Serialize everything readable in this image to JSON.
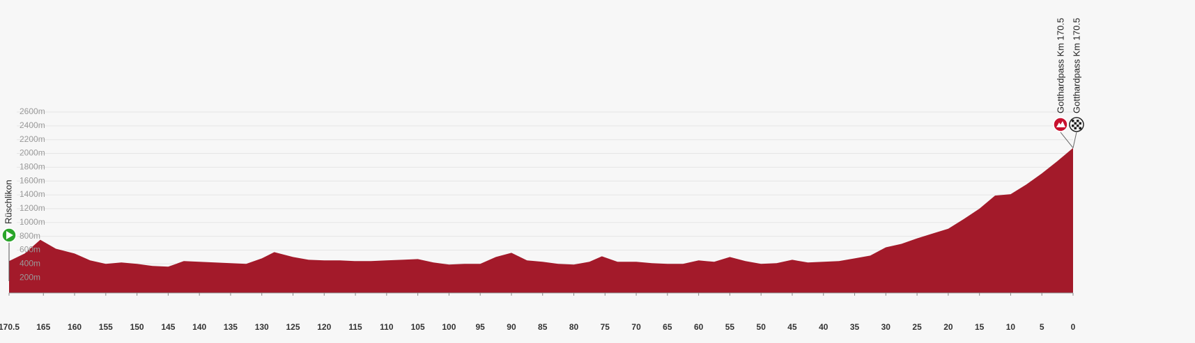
{
  "chart_data": {
    "type": "area",
    "color": "#a31a2a",
    "grid": true,
    "x": [
      170.5,
      168,
      165.5,
      163,
      160,
      157.5,
      155,
      152.5,
      150,
      147.5,
      145,
      142.5,
      140,
      137.5,
      135,
      132.5,
      130,
      128,
      125,
      122.5,
      120,
      117.5,
      115,
      112.5,
      110,
      107.5,
      105,
      102.5,
      100,
      97.5,
      95,
      92.5,
      90,
      87.5,
      85,
      82.5,
      80,
      77.5,
      75.5,
      73,
      70,
      67.5,
      65,
      62.5,
      60,
      57.5,
      55,
      52.5,
      50,
      47.5,
      45,
      42.5,
      40,
      37.5,
      35,
      32.5,
      30,
      27.5,
      25,
      22.5,
      20,
      17.5,
      15,
      12.5,
      10,
      7.5,
      5,
      2.5,
      0
    ],
    "values": [
      440,
      550,
      750,
      620,
      550,
      450,
      400,
      420,
      400,
      370,
      360,
      440,
      430,
      420,
      410,
      400,
      480,
      570,
      500,
      460,
      450,
      450,
      440,
      440,
      450,
      460,
      470,
      420,
      390,
      400,
      400,
      500,
      560,
      450,
      430,
      400,
      390,
      430,
      510,
      430,
      430,
      410,
      400,
      400,
      450,
      430,
      500,
      440,
      400,
      410,
      460,
      420,
      430,
      440,
      480,
      520,
      640,
      690,
      770,
      840,
      910,
      1050,
      1200,
      1390,
      1410,
      1550,
      1710,
      1890,
      2080
    ],
    "xlim": [
      170.5,
      0
    ],
    "xticks": [
      170.5,
      165,
      160,
      155,
      150,
      145,
      140,
      135,
      130,
      125,
      120,
      115,
      110,
      105,
      100,
      95,
      90,
      85,
      80,
      75,
      70,
      65,
      60,
      55,
      50,
      45,
      40,
      35,
      30,
      25,
      20,
      15,
      10,
      5,
      0
    ],
    "ylim": [
      0,
      2600
    ],
    "yticks": [
      {
        "value": 200,
        "label": "200m"
      },
      {
        "value": 400,
        "label": "400m"
      },
      {
        "value": 600,
        "label": "600m"
      },
      {
        "value": 800,
        "label": "800m"
      },
      {
        "value": 1000,
        "label": "1000m"
      },
      {
        "value": 1200,
        "label": "1200m"
      },
      {
        "value": 1400,
        "label": "1400m"
      },
      {
        "value": 1600,
        "label": "1600m"
      },
      {
        "value": 1800,
        "label": "1800m"
      },
      {
        "value": 2000,
        "label": "2000m"
      },
      {
        "value": 2200,
        "label": "2200m"
      },
      {
        "value": 2400,
        "label": "2400m"
      },
      {
        "value": 2600,
        "label": "2600m"
      }
    ],
    "annotations": [
      {
        "text": "Rüschlikon",
        "x": 170.5,
        "icon": "start"
      },
      {
        "text": "Gotthardpass Km 170.5",
        "x": 0,
        "icon": "climb"
      },
      {
        "text": "Gotthardpass Km 170.5",
        "x": 0,
        "icon": "finish"
      }
    ]
  }
}
